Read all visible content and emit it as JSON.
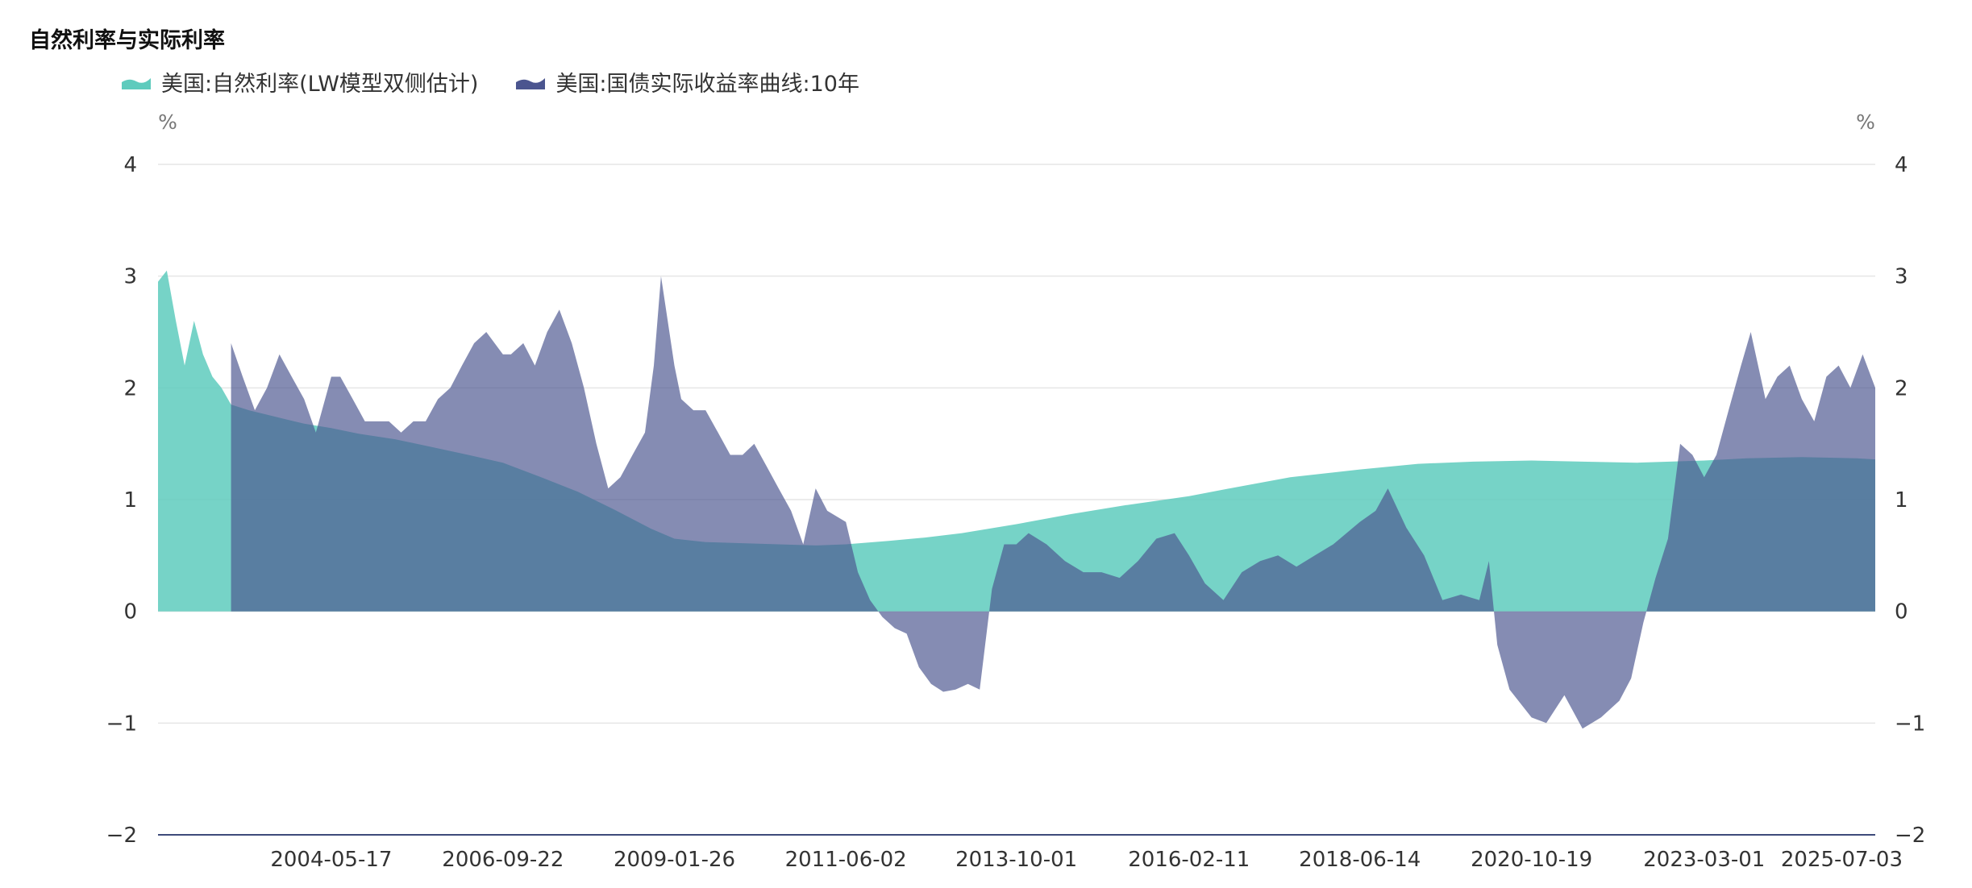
{
  "chart_data": {
    "type": "area",
    "title": "自然利率与实际利率",
    "y_unit_left": "%",
    "y_unit_right": "%",
    "ylim": [
      -2,
      4
    ],
    "y_ticks": [
      -2,
      -1,
      0,
      1,
      2,
      3,
      4
    ],
    "y_tick_labels": [
      "−2",
      "−1",
      "0",
      "1",
      "2",
      "3",
      "4"
    ],
    "x_range": [
      "2002-01-02",
      "2025-07-03"
    ],
    "x_tick_labels": [
      "2004-05-17",
      "2006-09-22",
      "2009-01-26",
      "2011-06-02",
      "2013-10-01",
      "2016-02-11",
      "2018-06-14",
      "2020-10-19",
      "2023-03-01",
      "2025-07-03"
    ],
    "grid": true,
    "legend_position": "top-left",
    "series": [
      {
        "name": "美国:自然利率(LW模型双侧估计)",
        "color": "#5ecbbd",
        "x": [
          "2002-01-02",
          "2002-02-15",
          "2002-04-01",
          "2002-05-15",
          "2002-07-01",
          "2002-08-15",
          "2002-10-01",
          "2002-11-15",
          "2003-01-02",
          "2003-04-01",
          "2003-07-01",
          "2003-10-01",
          "2004-01-02",
          "2004-05-17",
          "2004-10-01",
          "2005-04-01",
          "2005-10-01",
          "2006-04-01",
          "2006-09-22",
          "2007-04-01",
          "2007-10-01",
          "2008-04-01",
          "2008-10-01",
          "2009-01-26",
          "2009-07-01",
          "2010-01-02",
          "2010-07-01",
          "2011-01-02",
          "2011-06-02",
          "2012-01-02",
          "2012-07-01",
          "2013-01-02",
          "2013-10-01",
          "2014-07-01",
          "2015-04-01",
          "2016-02-11",
          "2016-10-01",
          "2017-07-01",
          "2018-06-14",
          "2019-04-01",
          "2020-01-02",
          "2020-10-19",
          "2021-07-01",
          "2022-04-01",
          "2023-03-01",
          "2023-10-01",
          "2024-07-01",
          "2025-04-01",
          "2025-07-03"
        ],
        "values": [
          2.95,
          3.05,
          2.6,
          2.2,
          2.6,
          2.3,
          2.1,
          2.0,
          1.85,
          1.8,
          1.76,
          1.72,
          1.68,
          1.64,
          1.59,
          1.54,
          1.47,
          1.4,
          1.33,
          1.2,
          1.07,
          0.91,
          0.74,
          0.65,
          0.62,
          0.61,
          0.6,
          0.59,
          0.6,
          0.63,
          0.66,
          0.7,
          0.78,
          0.87,
          0.95,
          1.03,
          1.11,
          1.2,
          1.27,
          1.32,
          1.34,
          1.35,
          1.34,
          1.33,
          1.35,
          1.37,
          1.38,
          1.37,
          1.36
        ]
      },
      {
        "name": "美国:国债实际收益率曲线:10年",
        "color": "#6d74a8",
        "x": [
          "2003-01-02",
          "2003-03-01",
          "2003-05-01",
          "2003-07-01",
          "2003-09-01",
          "2003-11-01",
          "2004-01-02",
          "2004-03-01",
          "2004-05-17",
          "2004-07-01",
          "2004-09-01",
          "2004-11-01",
          "2005-01-02",
          "2005-03-01",
          "2005-05-01",
          "2005-07-01",
          "2005-09-01",
          "2005-11-01",
          "2006-01-02",
          "2006-03-01",
          "2006-05-01",
          "2006-07-01",
          "2006-09-22",
          "2006-11-01",
          "2007-01-02",
          "2007-03-01",
          "2007-05-01",
          "2007-07-01",
          "2007-09-01",
          "2007-11-01",
          "2008-01-02",
          "2008-03-01",
          "2008-05-01",
          "2008-07-01",
          "2008-09-01",
          "2008-10-15",
          "2008-11-20",
          "2009-01-26",
          "2009-03-01",
          "2009-05-01",
          "2009-07-01",
          "2009-09-01",
          "2009-11-01",
          "2010-01-02",
          "2010-03-01",
          "2010-05-01",
          "2010-07-01",
          "2010-09-01",
          "2010-11-01",
          "2011-01-02",
          "2011-03-01",
          "2011-06-02",
          "2011-08-01",
          "2011-10-01",
          "2011-12-01",
          "2012-02-01",
          "2012-04-01",
          "2012-06-01",
          "2012-08-01",
          "2012-10-01",
          "2012-12-01",
          "2013-02-01",
          "2013-04-01",
          "2013-06-01",
          "2013-08-01",
          "2013-10-01",
          "2013-12-01",
          "2014-03-01",
          "2014-06-01",
          "2014-09-01",
          "2014-12-01",
          "2015-03-01",
          "2015-06-01",
          "2015-09-01",
          "2015-12-01",
          "2016-02-11",
          "2016-05-01",
          "2016-08-01",
          "2016-11-01",
          "2017-02-01",
          "2017-05-01",
          "2017-08-01",
          "2017-11-01",
          "2018-02-01",
          "2018-06-14",
          "2018-09-01",
          "2018-11-01",
          "2019-02-01",
          "2019-05-01",
          "2019-08-01",
          "2019-11-01",
          "2020-02-01",
          "2020-03-20",
          "2020-05-01",
          "2020-07-01",
          "2020-10-19",
          "2021-01-01",
          "2021-04-01",
          "2021-07-01",
          "2021-10-01",
          "2022-01-01",
          "2022-03-01",
          "2022-05-01",
          "2022-07-01",
          "2022-09-01",
          "2022-11-01",
          "2023-01-01",
          "2023-03-01",
          "2023-05-01",
          "2023-07-01",
          "2023-09-01",
          "2023-10-20",
          "2024-01-01",
          "2024-03-01",
          "2024-05-01",
          "2024-07-01",
          "2024-09-01",
          "2024-11-01",
          "2025-01-01",
          "2025-03-01",
          "2025-05-01",
          "2025-07-03"
        ],
        "values": [
          2.4,
          2.1,
          1.8,
          2.0,
          2.3,
          2.1,
          1.9,
          1.6,
          2.1,
          2.1,
          1.9,
          1.7,
          1.7,
          1.7,
          1.6,
          1.7,
          1.7,
          1.9,
          2.0,
          2.2,
          2.4,
          2.5,
          2.3,
          2.3,
          2.4,
          2.2,
          2.5,
          2.7,
          2.4,
          2.0,
          1.5,
          1.1,
          1.2,
          1.4,
          1.6,
          2.2,
          3.0,
          2.2,
          1.9,
          1.8,
          1.8,
          1.6,
          1.4,
          1.4,
          1.5,
          1.3,
          1.1,
          0.9,
          0.6,
          1.1,
          0.9,
          0.8,
          0.35,
          0.1,
          -0.05,
          -0.15,
          -0.2,
          -0.5,
          -0.65,
          -0.72,
          -0.7,
          -0.65,
          -0.7,
          0.2,
          0.6,
          0.6,
          0.7,
          0.6,
          0.45,
          0.35,
          0.35,
          0.3,
          0.45,
          0.65,
          0.7,
          0.5,
          0.25,
          0.1,
          0.35,
          0.45,
          0.5,
          0.4,
          0.5,
          0.6,
          0.8,
          0.9,
          1.1,
          0.75,
          0.5,
          0.1,
          0.15,
          0.1,
          0.45,
          -0.3,
          -0.7,
          -0.95,
          -1.0,
          -0.75,
          -1.05,
          -0.95,
          -0.8,
          -0.6,
          -0.1,
          0.3,
          0.65,
          1.5,
          1.4,
          1.2,
          1.4,
          1.8,
          2.2,
          2.5,
          1.9,
          2.1,
          2.2,
          1.9,
          1.7,
          2.1,
          2.2,
          2.0,
          2.3,
          2.0
        ]
      }
    ]
  }
}
